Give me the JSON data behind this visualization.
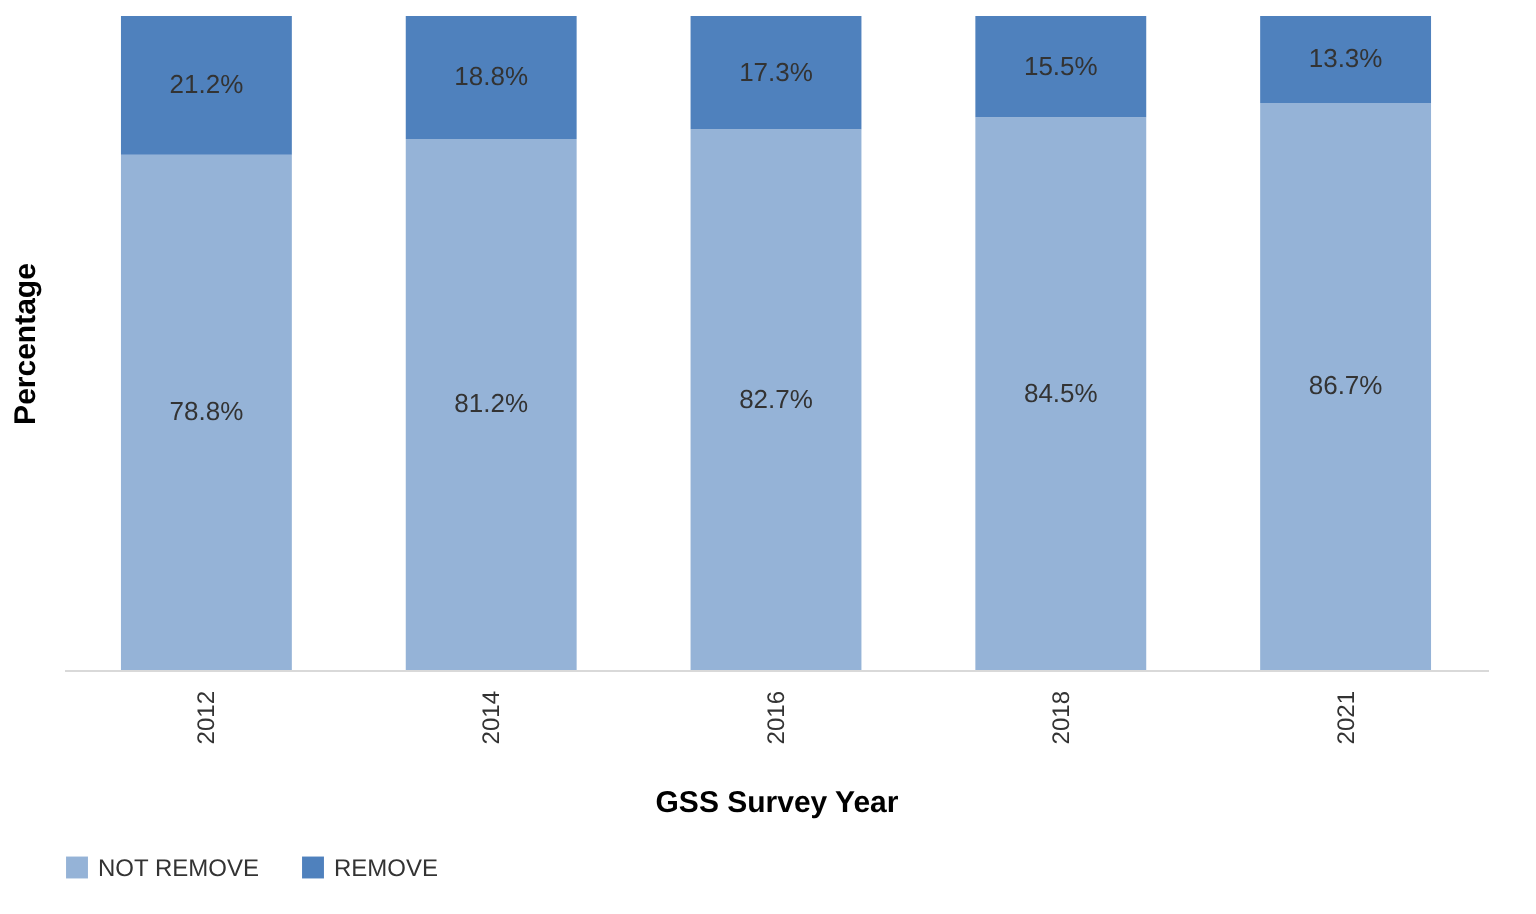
{
  "chart_data": {
    "type": "bar",
    "stacked": true,
    "xlabel": "GSS Survey Year",
    "ylabel": "Percentage",
    "categories": [
      "2012",
      "2014",
      "2016",
      "2018",
      "2021"
    ],
    "legend": "bottom",
    "grid": false,
    "tick_labels": "x",
    "series": [
      {
        "name": "NOT REMOVE",
        "color": "#95b3d7",
        "values": [
          78.8,
          81.2,
          82.7,
          84.5,
          86.7
        ],
        "value_labels": [
          "78.8%",
          "81.2%",
          "82.7%",
          "84.5%",
          "86.7%"
        ]
      },
      {
        "name": "REMOVE",
        "color": "#4f81bd",
        "values": [
          21.2,
          18.8,
          17.3,
          15.5,
          13.3
        ],
        "value_labels": [
          "21.2%",
          "18.8%",
          "17.3%",
          "15.5%",
          "13.3%"
        ]
      }
    ]
  }
}
